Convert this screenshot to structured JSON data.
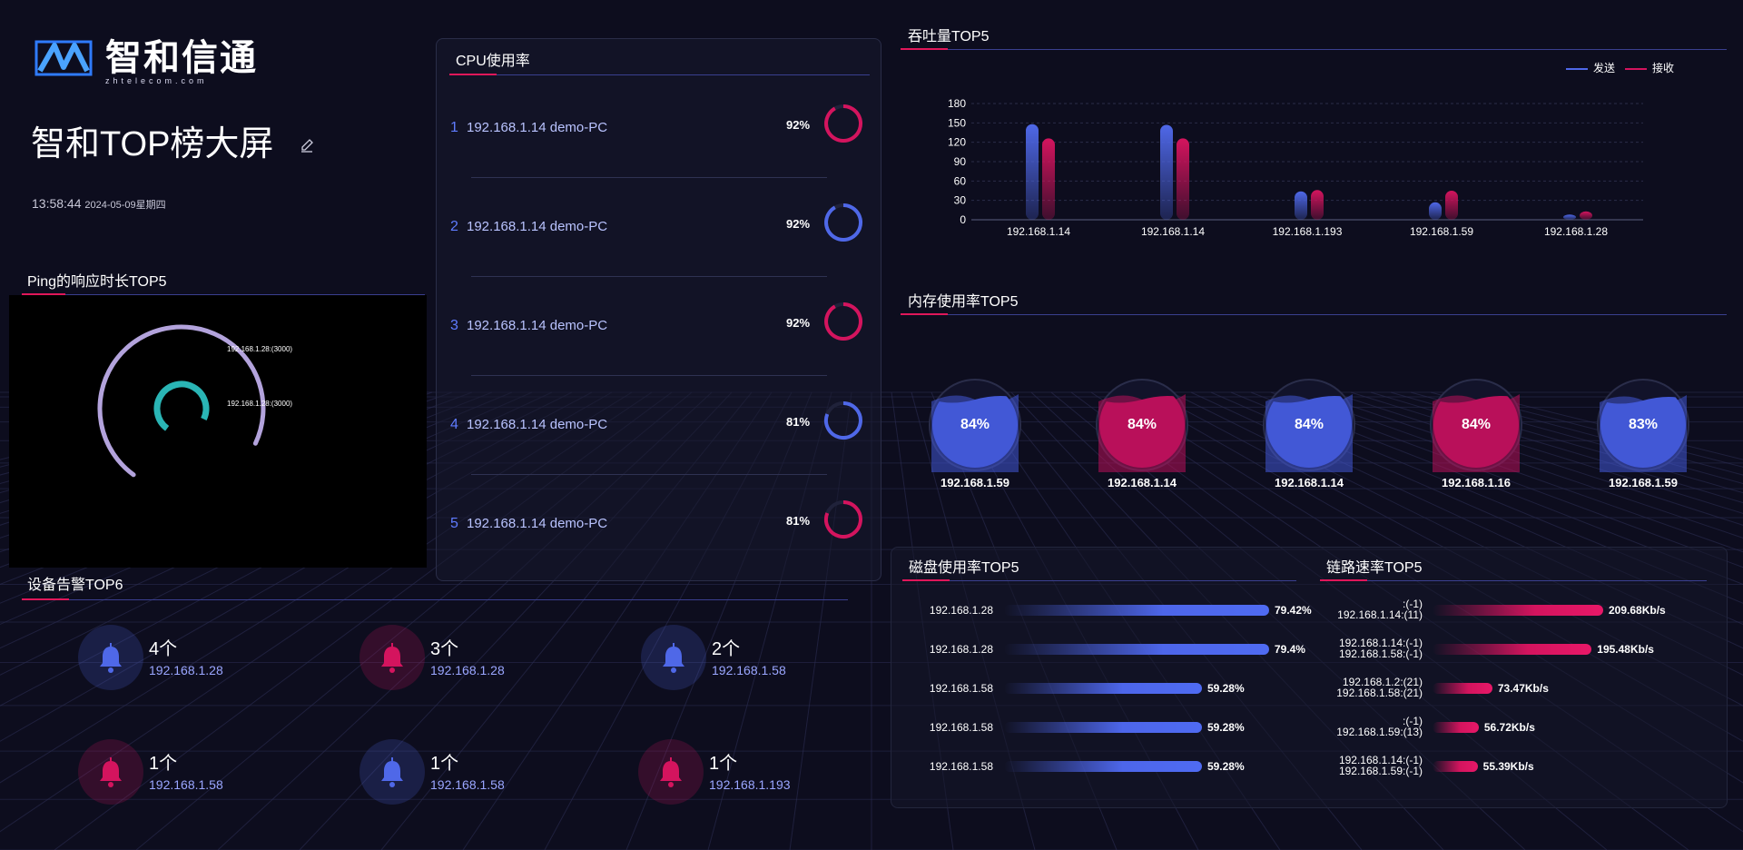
{
  "header": {
    "logo_text": "智和信通",
    "logo_sub": "zhtelecom.com",
    "title": "智和TOP榜大屏",
    "time": "13:58:44",
    "date": "2024-05-09星期四"
  },
  "panels": {
    "cpu": "CPU使用率",
    "ping": "Ping的响应时长TOP5",
    "alarm": "设备告警TOP6",
    "throughput": "吞吐量TOP5",
    "memory": "内存使用率TOP5",
    "disk": "磁盘使用率TOP5",
    "link": "链路速率TOP5"
  },
  "cpu": [
    {
      "idx": "1",
      "host": "192.168.1.14  demo-PC",
      "pct": "92%",
      "value": 0.92,
      "color": "#d4145e"
    },
    {
      "idx": "2",
      "host": "192.168.1.14  demo-PC",
      "pct": "92%",
      "value": 0.92,
      "color": "#4f68e8"
    },
    {
      "idx": "3",
      "host": "192.168.1.14  demo-PC",
      "pct": "92%",
      "value": 0.92,
      "color": "#d4145e"
    },
    {
      "idx": "4",
      "host": "192.168.1.14  demo-PC",
      "pct": "81%",
      "value": 0.81,
      "color": "#4f68e8"
    },
    {
      "idx": "5",
      "host": "192.168.1.14  demo-PC",
      "pct": "81%",
      "value": 0.81,
      "color": "#d4145e"
    }
  ],
  "ping": {
    "labels": [
      "192.168.1.28:(3000)",
      "192.168.1.28:(3000)"
    ],
    "colors": [
      "#b3a3dc",
      "#2ab5b5"
    ],
    "values": [
      0.72,
      0.72
    ]
  },
  "alarms": [
    {
      "count": "4个",
      "ip": "192.168.1.28",
      "color": "#4f68e8"
    },
    {
      "count": "3个",
      "ip": "192.168.1.28",
      "color": "#d4145e"
    },
    {
      "count": "2个",
      "ip": "192.168.1.58",
      "color": "#4f68e8"
    },
    {
      "count": "1个",
      "ip": "192.168.1.58",
      "color": "#d4145e"
    },
    {
      "count": "1个",
      "ip": "192.168.1.58",
      "color": "#4f68e8"
    },
    {
      "count": "1个",
      "ip": "192.168.1.193",
      "color": "#d4145e"
    }
  ],
  "chart_data": {
    "type": "bar",
    "categories": [
      "192.168.1.14",
      "192.168.1.14",
      "192.168.1.193",
      "192.168.1.59",
      "192.168.1.28"
    ],
    "series": [
      {
        "name": "发送",
        "values": [
          148,
          147,
          44,
          27,
          8
        ],
        "color": "#4f68e8"
      },
      {
        "name": "接收",
        "values": [
          126,
          126,
          46,
          45,
          13
        ],
        "color": "#d4145e"
      }
    ],
    "yticks": [
      "0",
      "30",
      "60",
      "90",
      "120",
      "150",
      "180"
    ],
    "ylim": [
      0,
      180
    ],
    "legend": "top-right"
  },
  "memory": [
    {
      "pct": "84%",
      "ip": "192.168.1.59",
      "value": 0.84,
      "color": "#4258d6"
    },
    {
      "pct": "84%",
      "ip": "192.168.1.14",
      "value": 0.84,
      "color": "#b9105a"
    },
    {
      "pct": "84%",
      "ip": "192.168.1.14",
      "value": 0.84,
      "color": "#4258d6"
    },
    {
      "pct": "84%",
      "ip": "192.168.1.16",
      "value": 0.84,
      "color": "#b9105a"
    },
    {
      "pct": "83%",
      "ip": "192.168.1.59",
      "value": 0.83,
      "color": "#4258d6"
    }
  ],
  "disk": [
    {
      "ip": "192.168.1.28",
      "val": "79.42%",
      "value": 79.42
    },
    {
      "ip": "192.168.1.28",
      "val": "79.4%",
      "value": 79.4
    },
    {
      "ip": "192.168.1.58",
      "val": "59.28%",
      "value": 59.28
    },
    {
      "ip": "192.168.1.58",
      "val": "59.28%",
      "value": 59.28
    },
    {
      "ip": "192.168.1.58",
      "val": "59.28%",
      "value": 59.28
    }
  ],
  "link": [
    {
      "line1": ":(-1)",
      "line2": "192.168.1.14:(11)",
      "val": "209.68Kb/s",
      "value": 209.68
    },
    {
      "line1": "192.168.1.14:(-1)",
      "line2": "192.168.1.58:(-1)",
      "val": "195.48Kb/s",
      "value": 195.48
    },
    {
      "line1": "192.168.1.2:(21)",
      "line2": "192.168.1.58:(21)",
      "val": "73.47Kb/s",
      "value": 73.47
    },
    {
      "line1": ":(-1)",
      "line2": "192.168.1.59:(13)",
      "val": "56.72Kb/s",
      "value": 56.72
    },
    {
      "line1": "192.168.1.14:(-1)",
      "line2": "192.168.1.59:(-1)",
      "val": "55.39Kb/s",
      "value": 55.39
    }
  ]
}
